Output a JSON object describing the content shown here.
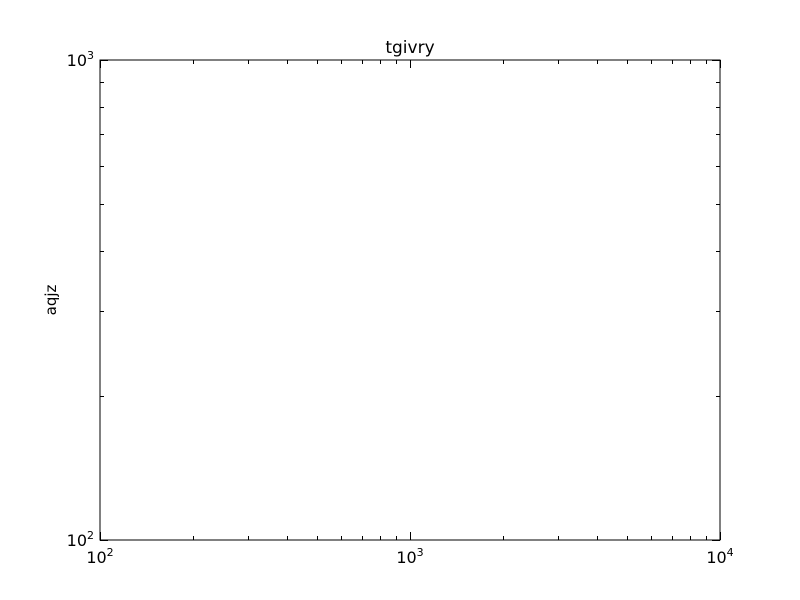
{
  "chart_data": {
    "type": "scatter",
    "title": "tgivry",
    "xlabel": "",
    "ylabel": "aqjz",
    "xscale": "log",
    "yscale": "log",
    "xlim": [
      100,
      10000
    ],
    "ylim": [
      100,
      1000
    ],
    "grid": false,
    "series": [],
    "x_ticks": [
      {
        "value": 100,
        "base": "10",
        "exp": "2"
      },
      {
        "value": 1000,
        "base": "10",
        "exp": "3"
      },
      {
        "value": 10000,
        "base": "10",
        "exp": "4"
      }
    ],
    "y_ticks": [
      {
        "value": 100,
        "base": "10",
        "exp": "2"
      },
      {
        "value": 1000,
        "base": "10",
        "exp": "3"
      }
    ]
  }
}
